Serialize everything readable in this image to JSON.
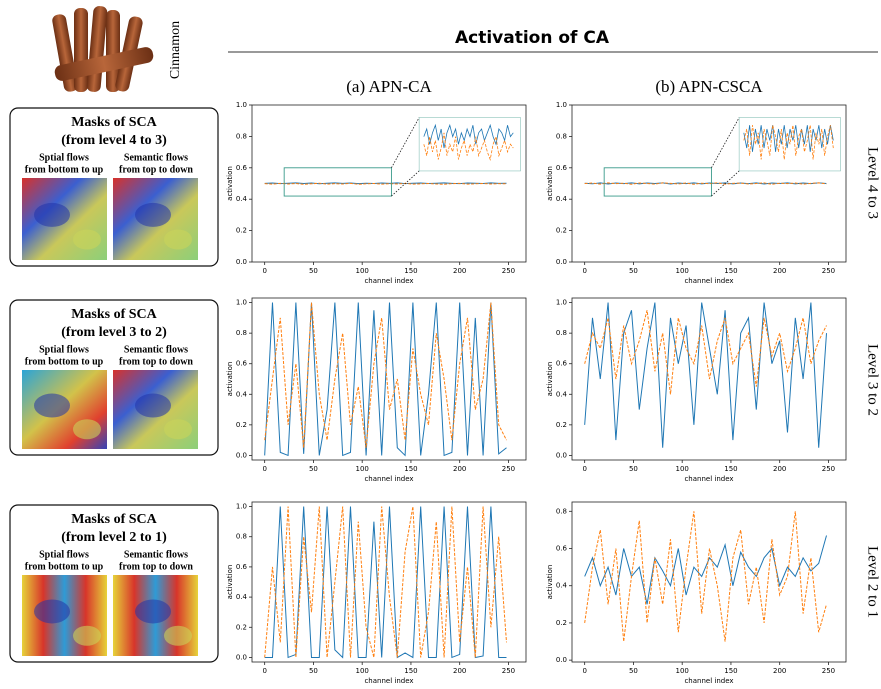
{
  "figure": {
    "title": "Activation of CA",
    "column_labels": [
      "(a) APN-CA",
      "(b) APN-CSCA"
    ],
    "row_labels": [
      "Level 4 to 3",
      "Level 3 to 2",
      "Level 2 to 1"
    ],
    "image_label": "Cinnamon",
    "panels": [
      {
        "title": "Masks of SCA",
        "subtitle": "(from level 4 to 3)",
        "left": [
          "Sptial flows",
          "from bottom to up"
        ],
        "right": [
          "Semantic flows",
          "from top to down"
        ]
      },
      {
        "title": "Masks of SCA",
        "subtitle": "(from level 3 to 2)",
        "left": [
          "Sptial flows",
          "from bottom to up"
        ],
        "right": [
          "Semantic flows",
          "from top to down"
        ]
      },
      {
        "title": "Masks of SCA",
        "subtitle": "(from level 2 to 1)",
        "left": [
          "Sptial flows",
          "from bottom to up"
        ],
        "right": [
          "Semantic flows",
          "from top to down"
        ]
      }
    ]
  },
  "chart_data": [
    {
      "type": "line",
      "xlabel": "channel index",
      "ylabel": "activation",
      "x": [
        0,
        8,
        16,
        24,
        32,
        40,
        48,
        56,
        64,
        72,
        80,
        88,
        96,
        104,
        112,
        120,
        128,
        136,
        144,
        152,
        160,
        168,
        176,
        184,
        192,
        200,
        208,
        216,
        224,
        232,
        240,
        248
      ],
      "series": [
        {
          "color": "#1f77b4",
          "values": [
            0.501,
            0.503,
            0.499,
            0.502,
            0.504,
            0.5,
            0.503,
            0.498,
            0.502,
            0.504,
            0.501,
            0.503,
            0.499,
            0.502,
            0.5,
            0.503,
            0.501,
            0.504,
            0.499,
            0.502,
            0.503,
            0.5,
            0.502,
            0.504,
            0.501,
            0.499,
            0.503,
            0.502,
            0.5,
            0.504,
            0.501,
            0.502
          ]
        },
        {
          "color": "#ff7f0e",
          "dashed": true,
          "values": [
            0.499,
            0.496,
            0.501,
            0.497,
            0.5,
            0.495,
            0.498,
            0.502,
            0.496,
            0.499,
            0.497,
            0.501,
            0.495,
            0.498,
            0.5,
            0.496,
            0.499,
            0.497,
            0.501,
            0.496,
            0.498,
            0.5,
            0.497,
            0.495,
            0.499,
            0.501,
            0.496,
            0.498,
            0.5,
            0.497,
            0.499,
            0.498
          ]
        }
      ],
      "xlim": [
        -13,
        268
      ],
      "xticks": [
        0,
        50,
        100,
        150,
        200,
        250
      ],
      "ylim": [
        0,
        1
      ],
      "yticks": [
        {
          "value": 0,
          "label": "0.0"
        },
        0.2,
        0.4,
        0.6,
        0.8,
        {
          "value": 1,
          "label": "1.0"
        }
      ],
      "zoom": {
        "xlim": [
          20,
          130
        ],
        "ylim": [
          0.42,
          0.6
        ],
        "inset_ylim": [
          0.492,
          0.506
        ],
        "color": "#3a9a8a"
      }
    },
    {
      "type": "line",
      "xlabel": "channel index",
      "ylabel": "activation",
      "x": [
        0,
        8,
        16,
        24,
        32,
        40,
        48,
        56,
        64,
        72,
        80,
        88,
        96,
        104,
        112,
        120,
        128,
        136,
        144,
        152,
        160,
        168,
        176,
        184,
        192,
        200,
        208,
        216,
        224,
        232,
        240,
        248
      ],
      "series": [
        {
          "color": "#1f77b4",
          "values": [
            0.502,
            0.498,
            0.504,
            0.497,
            0.503,
            0.499,
            0.504,
            0.498,
            0.503,
            0.5,
            0.504,
            0.497,
            0.503,
            0.499,
            0.504,
            0.498,
            0.503,
            0.5,
            0.504,
            0.498,
            0.503,
            0.499,
            0.504,
            0.497,
            0.503,
            0.5,
            0.504,
            0.498,
            0.503,
            0.499,
            0.504,
            0.5
          ]
        },
        {
          "color": "#ff7f0e",
          "dashed": true,
          "values": [
            0.5,
            0.503,
            0.496,
            0.504,
            0.499,
            0.502,
            0.495,
            0.503,
            0.5,
            0.496,
            0.504,
            0.501,
            0.497,
            0.503,
            0.495,
            0.502,
            0.499,
            0.504,
            0.496,
            0.501,
            0.503,
            0.497,
            0.5,
            0.504,
            0.495,
            0.502,
            0.499,
            0.503,
            0.496,
            0.501,
            0.504,
            0.498
          ]
        }
      ],
      "xlim": [
        -13,
        268
      ],
      "xticks": [
        0,
        50,
        100,
        150,
        200,
        250
      ],
      "ylim": [
        0,
        1
      ],
      "yticks": [
        {
          "value": 0,
          "label": "0.0"
        },
        0.2,
        0.4,
        0.6,
        0.8,
        {
          "value": 1,
          "label": "1.0"
        }
      ],
      "zoom": {
        "xlim": [
          20,
          130
        ],
        "ylim": [
          0.42,
          0.6
        ],
        "inset_ylim": [
          0.492,
          0.506
        ],
        "color": "#3a9a8a"
      }
    },
    {
      "type": "line",
      "xlabel": "channel index",
      "ylabel": "activation",
      "x": [
        0,
        8,
        16,
        24,
        32,
        40,
        48,
        56,
        64,
        72,
        80,
        88,
        96,
        104,
        112,
        120,
        128,
        136,
        144,
        152,
        160,
        168,
        176,
        184,
        192,
        200,
        208,
        216,
        224,
        232,
        240,
        248
      ],
      "series": [
        {
          "color": "#1f77b4",
          "values": [
            0,
            1,
            0.02,
            0,
            1,
            0.01,
            1,
            0,
            0.3,
            1,
            0,
            0.02,
            1,
            0,
            0.95,
            0,
            1,
            0.05,
            0,
            1,
            0,
            0.4,
            1,
            0,
            0.02,
            1,
            0,
            0.9,
            0,
            1,
            0.01,
            0.05
          ]
        },
        {
          "color": "#ff7f0e",
          "dashed": true,
          "values": [
            0.1,
            0.5,
            0.9,
            0.2,
            0.6,
            0.05,
            1,
            0.4,
            0.1,
            0.5,
            0.8,
            0.2,
            0.45,
            0.05,
            0.6,
            0.9,
            0.3,
            0.5,
            0.1,
            0.7,
            0.4,
            0.2,
            0.8,
            0.5,
            0.1,
            0.6,
            0.9,
            0.3,
            0.5,
            1,
            0.2,
            0.1
          ]
        }
      ],
      "xlim": [
        -13,
        268
      ],
      "xticks": [
        0,
        50,
        100,
        150,
        200,
        250
      ],
      "ylim": [
        -0.03,
        1.03
      ],
      "yticks": [
        {
          "value": 0,
          "label": "0.0"
        },
        0.2,
        0.4,
        0.6,
        0.8,
        {
          "value": 1,
          "label": "1.0"
        }
      ]
    },
    {
      "type": "line",
      "xlabel": "channel index",
      "ylabel": "activation",
      "x": [
        0,
        8,
        16,
        24,
        32,
        40,
        48,
        56,
        64,
        72,
        80,
        88,
        96,
        104,
        112,
        120,
        128,
        136,
        144,
        152,
        160,
        168,
        176,
        184,
        192,
        200,
        208,
        216,
        224,
        232,
        240,
        248
      ],
      "series": [
        {
          "color": "#1f77b4",
          "values": [
            0.2,
            0.9,
            0.5,
            1,
            0.1,
            0.8,
            0.95,
            0.3,
            0.7,
            1,
            0.05,
            0.9,
            0.6,
            0.85,
            0.2,
            1,
            0.7,
            0.4,
            0.95,
            0.1,
            0.8,
            0.9,
            0.3,
            1,
            0.6,
            0.75,
            0.15,
            0.9,
            0.5,
            1,
            0.05,
            0.8
          ]
        },
        {
          "color": "#ff7f0e",
          "dashed": true,
          "values": [
            0.6,
            0.8,
            0.7,
            0.9,
            0.5,
            0.85,
            0.6,
            0.75,
            0.95,
            0.55,
            0.8,
            0.4,
            0.9,
            0.7,
            0.6,
            0.85,
            0.5,
            0.75,
            0.9,
            0.6,
            0.7,
            0.8,
            0.45,
            0.9,
            0.65,
            0.8,
            0.55,
            0.7,
            0.9,
            0.6,
            0.75,
            0.85
          ]
        }
      ],
      "xlim": [
        -13,
        268
      ],
      "xticks": [
        0,
        50,
        100,
        150,
        200,
        250
      ],
      "ylim": [
        -0.03,
        1.03
      ],
      "yticks": [
        {
          "value": 0,
          "label": "0.0"
        },
        0.2,
        0.4,
        0.6,
        0.8,
        {
          "value": 1,
          "label": "1.0"
        }
      ]
    },
    {
      "type": "line",
      "xlabel": "channel index",
      "ylabel": "activation",
      "x": [
        0,
        8,
        16,
        24,
        32,
        40,
        48,
        56,
        64,
        72,
        80,
        88,
        96,
        104,
        112,
        120,
        128,
        136,
        144,
        152,
        160,
        168,
        176,
        184,
        192,
        200,
        208,
        216,
        224,
        232,
        240,
        248
      ],
      "series": [
        {
          "color": "#1f77b4",
          "values": [
            0,
            0,
            1,
            0,
            0.02,
            1,
            0,
            0,
            1,
            0.05,
            0,
            1,
            0,
            0,
            0.9,
            0,
            1,
            0,
            0.03,
            0,
            1,
            0,
            0,
            1,
            0,
            0.02,
            1,
            0,
            0.01,
            1,
            0,
            0
          ]
        },
        {
          "color": "#ff7f0e",
          "dashed": true,
          "values": [
            0,
            0.6,
            0.1,
            1,
            0,
            0.8,
            0.3,
            1,
            0,
            0.5,
            1,
            0,
            0.9,
            0.2,
            0,
            1,
            0.4,
            0,
            0.7,
            1,
            0,
            0.3,
            0.9,
            0,
            1,
            0.1,
            0.6,
            0,
            1,
            0.2,
            0.8,
            0.1
          ]
        }
      ],
      "xlim": [
        -13,
        268
      ],
      "xticks": [
        0,
        50,
        100,
        150,
        200,
        250
      ],
      "ylim": [
        -0.03,
        1.03
      ],
      "yticks": [
        {
          "value": 0,
          "label": "0.0"
        },
        0.2,
        0.4,
        0.6,
        0.8,
        {
          "value": 1,
          "label": "1.0"
        }
      ]
    },
    {
      "type": "line",
      "xlabel": "channel index",
      "ylabel": "activation",
      "x": [
        0,
        8,
        16,
        24,
        32,
        40,
        48,
        56,
        64,
        72,
        80,
        88,
        96,
        104,
        112,
        120,
        128,
        136,
        144,
        152,
        160,
        168,
        176,
        184,
        192,
        200,
        208,
        216,
        224,
        232,
        240,
        248
      ],
      "series": [
        {
          "color": "#1f77b4",
          "values": [
            0.45,
            0.55,
            0.4,
            0.5,
            0.35,
            0.6,
            0.45,
            0.5,
            0.3,
            0.55,
            0.48,
            0.4,
            0.6,
            0.35,
            0.5,
            0.45,
            0.55,
            0.5,
            0.62,
            0.4,
            0.58,
            0.5,
            0.45,
            0.55,
            0.6,
            0.4,
            0.5,
            0.45,
            0.55,
            0.48,
            0.52,
            0.67
          ]
        },
        {
          "color": "#ff7f0e",
          "dashed": true,
          "values": [
            0.2,
            0.5,
            0.7,
            0.3,
            0.6,
            0.1,
            0.45,
            0.75,
            0.2,
            0.55,
            0.3,
            0.65,
            0.15,
            0.5,
            0.8,
            0.25,
            0.6,
            0.4,
            0.1,
            0.55,
            0.7,
            0.3,
            0.5,
            0.2,
            0.65,
            0.35,
            0.45,
            0.8,
            0.25,
            0.55,
            0.15,
            0.3
          ]
        }
      ],
      "xlim": [
        -13,
        268
      ],
      "xticks": [
        0,
        50,
        100,
        150,
        200,
        250
      ],
      "ylim": [
        -0.01,
        0.85
      ],
      "yticks": [
        {
          "value": 0,
          "label": "0.0"
        },
        0.2,
        0.4,
        0.6,
        0.8
      ]
    }
  ]
}
